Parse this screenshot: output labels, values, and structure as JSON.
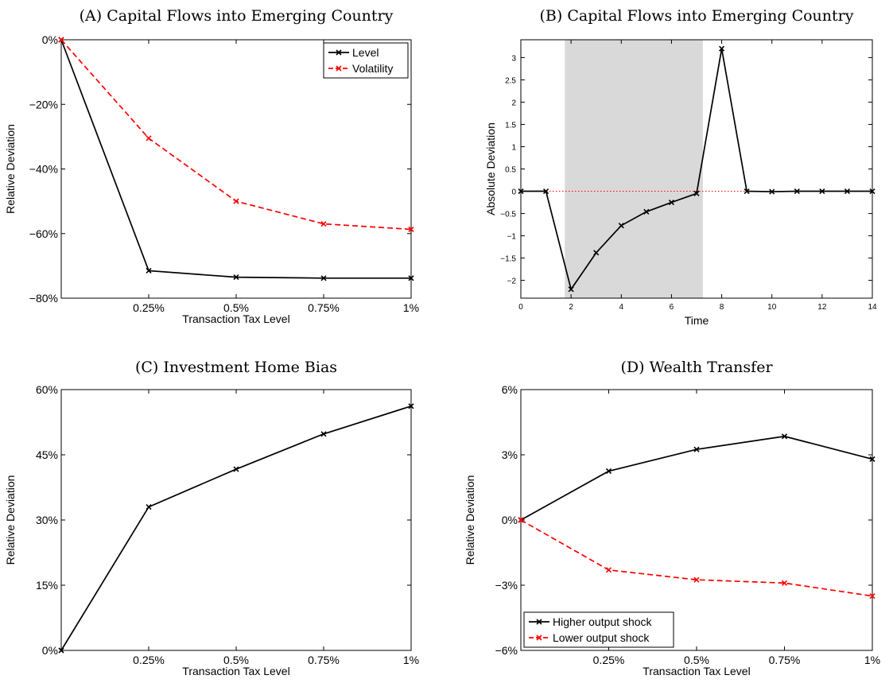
{
  "chart_data": [
    {
      "panel": "A",
      "type": "line",
      "title": "(A) Capital Flows into Emerging Country",
      "xlabel": "Transaction Tax Level",
      "ylabel": "Relative Deviation",
      "x": [
        0,
        0.25,
        0.5,
        0.75,
        1.0
      ],
      "xlim": [
        0,
        1
      ],
      "xticks": [
        0.25,
        0.5,
        0.75,
        1.0
      ],
      "xticklabels": [
        "0.25%",
        "0.5%",
        "0.75%",
        "1%"
      ],
      "ylim": [
        -80,
        0
      ],
      "yticks": [
        0,
        -20,
        -40,
        -60,
        -80
      ],
      "yticklabels": [
        "0%",
        "−20%",
        "−40%",
        "−60%",
        "−80%"
      ],
      "legend_position": "top-right",
      "grid": false,
      "series": [
        {
          "name": "Level",
          "color": "#000000",
          "dash": "solid",
          "values": [
            0,
            -71.5,
            -73.5,
            -73.8,
            -73.8
          ]
        },
        {
          "name": "Volatility",
          "color": "#ff0000",
          "dash": "dashed",
          "values": [
            0,
            -30.5,
            -50,
            -57,
            -58.7
          ]
        }
      ]
    },
    {
      "panel": "B",
      "type": "line",
      "title": "(B) Capital Flows into Emerging Country",
      "xlabel": "Time",
      "ylabel": "Absolute Deviation",
      "x": [
        0,
        1,
        2,
        3,
        4,
        5,
        6,
        7,
        8,
        9,
        10,
        11,
        12,
        13,
        14
      ],
      "xlim": [
        0,
        14
      ],
      "xticks": [
        0,
        2,
        4,
        6,
        8,
        10,
        12,
        14
      ],
      "xticklabels": [
        "0",
        "2",
        "4",
        "6",
        "8",
        "10",
        "12",
        "14"
      ],
      "ylim": [
        -2.4,
        3.4
      ],
      "yticks": [
        3,
        2.5,
        2,
        1.5,
        1,
        0.5,
        0,
        -0.5,
        -1,
        -1.5,
        -2
      ],
      "yticklabels": [
        "3",
        "2.5",
        "2",
        "1.5",
        "1",
        "0.5",
        "0",
        "−0.5",
        "−1",
        "−1.5",
        "−2"
      ],
      "shaded_region": [
        1.75,
        7.25
      ],
      "shade_color": "#d9d9d9",
      "zero_line_color": "#ff0000",
      "grid": false,
      "series": [
        {
          "color": "#000000",
          "dash": "solid",
          "values": [
            0,
            0,
            -2.2,
            -1.38,
            -0.77,
            -0.46,
            -0.25,
            -0.05,
            3.2,
            0,
            -0.01,
            0,
            0,
            0,
            0
          ]
        }
      ]
    },
    {
      "panel": "C",
      "type": "line",
      "title": "(C) Investment Home Bias",
      "xlabel": "Transaction Tax Level",
      "ylabel": "Relative Deviation",
      "x": [
        0,
        0.25,
        0.5,
        0.75,
        1.0
      ],
      "xlim": [
        0,
        1
      ],
      "xticks": [
        0.25,
        0.5,
        0.75,
        1.0
      ],
      "xticklabels": [
        "0.25%",
        "0.5%",
        "0.75%",
        "1%"
      ],
      "ylim": [
        0,
        60
      ],
      "yticks": [
        60,
        45,
        30,
        15,
        0
      ],
      "yticklabels": [
        "60%",
        "45%",
        "30%",
        "15%",
        "0%"
      ],
      "grid": false,
      "series": [
        {
          "color": "#000000",
          "dash": "solid",
          "values": [
            0,
            33,
            41.7,
            49.8,
            56.2
          ]
        }
      ]
    },
    {
      "panel": "D",
      "type": "line",
      "title": "(D) Wealth Transfer",
      "xlabel": "Transaction Tax Level",
      "ylabel": "Relative Deviation",
      "x": [
        0,
        0.25,
        0.5,
        0.75,
        1.0
      ],
      "xlim": [
        0,
        1
      ],
      "xticks": [
        0.25,
        0.5,
        0.75,
        1.0
      ],
      "xticklabels": [
        "0.25%",
        "0.5%",
        "0.75%",
        "1%"
      ],
      "ylim": [
        -6,
        6
      ],
      "yticks": [
        6,
        3,
        0,
        -3,
        -6
      ],
      "yticklabels": [
        "6%",
        "3%",
        "0%",
        "−3%",
        "−6%"
      ],
      "legend_position": "bottom-left",
      "grid": false,
      "series": [
        {
          "name": "Higher output shock",
          "color": "#000000",
          "dash": "solid",
          "values": [
            0,
            2.25,
            3.25,
            3.85,
            2.8
          ]
        },
        {
          "name": "Lower output shock",
          "color": "#ff0000",
          "dash": "dashed",
          "values": [
            0,
            -2.3,
            -2.75,
            -2.9,
            -3.5
          ]
        }
      ]
    }
  ]
}
